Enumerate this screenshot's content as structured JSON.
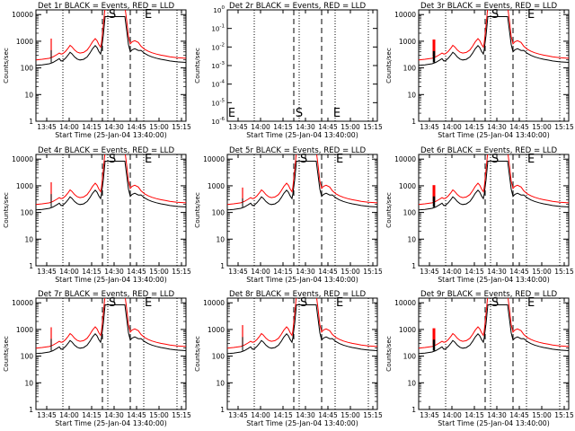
{
  "chart_data": {
    "type": "line",
    "shared": {
      "x_tick_labels": [
        "13:45",
        "14:00",
        "14:15",
        "14:30",
        "14:45",
        "15:00",
        "15:15"
      ],
      "x_ticks_min": [
        13.75,
        14.0,
        14.25,
        14.5,
        14.75,
        15.0,
        15.25
      ],
      "xlim": [
        13.63,
        15.3
      ],
      "xlabel": "Start Time (25-Jan-04 13:40:00)",
      "ylabel": "Counts/sec",
      "yscale": "log",
      "ylim": [
        1,
        15000
      ],
      "y_tick_labels": [
        "1",
        "10",
        "100",
        "1000",
        "10000"
      ],
      "y_ticks": [
        1,
        10,
        100,
        1000,
        10000
      ],
      "dotted_vlines": [
        13.93,
        14.43,
        14.83,
        15.2
      ],
      "dashed_vlines": [
        14.37,
        14.68
      ],
      "marker_S": 14.43,
      "marker_E": 14.83,
      "series_colors": {
        "black": "#000000",
        "red": "#ff0000"
      }
    },
    "panels": [
      {
        "title": "Det 1r BLACK = Events, RED = LLD",
        "variant": "normal",
        "spike": 100
      },
      {
        "title": "Det 2r BLACK = Events, RED = LLD",
        "variant": "empty",
        "empty_ylim_exp": [
          0,
          -6
        ],
        "empty_y_tick_exps": [
          0,
          -1,
          -2,
          -3,
          -4,
          -5,
          -6
        ],
        "empty_marker_labels": [
          "E",
          "S",
          "E"
        ]
      },
      {
        "title": "Det 3r BLACK = Events, RED = LLD",
        "variant": "thick",
        "spike": 90
      },
      {
        "title": "Det 4r BLACK = Events, RED = LLD",
        "variant": "normal",
        "spike": 110
      },
      {
        "title": "Det 5r BLACK = Events, RED = LLD",
        "variant": "normal",
        "spike": 60
      },
      {
        "title": "Det 6r BLACK = Events, RED = LLD",
        "variant": "thick",
        "spike": 80
      },
      {
        "title": "Det 7r BLACK = Events, RED = LLD",
        "variant": "normal",
        "spike": 95
      },
      {
        "title": "Det 8r BLACK = Events, RED = LLD",
        "variant": "normal",
        "spike": 120
      },
      {
        "title": "Det 9r BLACK = Events, RED = LLD",
        "variant": "thick",
        "spike": 85
      }
    ]
  }
}
